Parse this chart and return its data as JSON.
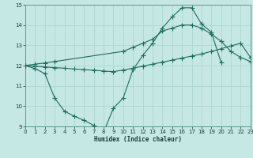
{
  "xlabel": "Humidex (Indice chaleur)",
  "xlim": [
    0,
    23
  ],
  "ylim": [
    9,
    15
  ],
  "xticks": [
    0,
    1,
    2,
    3,
    4,
    5,
    6,
    7,
    8,
    9,
    10,
    11,
    12,
    13,
    14,
    15,
    16,
    17,
    18,
    19,
    20,
    21,
    22,
    23
  ],
  "yticks": [
    9,
    10,
    11,
    12,
    13,
    14,
    15
  ],
  "bg_color": "#c5e8e5",
  "grid_color": "#b0d8d4",
  "line_color": "#1e6b5e",
  "curve1_x": [
    0,
    1,
    2,
    3,
    4,
    5,
    6,
    7,
    8,
    9,
    10,
    11,
    12,
    13,
    14,
    15,
    16,
    17,
    18,
    19,
    20
  ],
  "curve1_y": [
    12.0,
    11.85,
    11.6,
    10.4,
    9.75,
    9.5,
    9.3,
    9.05,
    8.72,
    9.9,
    10.4,
    11.8,
    12.5,
    13.1,
    13.85,
    14.4,
    14.85,
    14.85,
    14.05,
    13.65,
    12.15
  ],
  "curve2_x": [
    0,
    1,
    2,
    3,
    4,
    5,
    6,
    7,
    8,
    9,
    10,
    11,
    12,
    13,
    14,
    15,
    16,
    17,
    18,
    19,
    20,
    21,
    22,
    23
  ],
  "curve2_y": [
    12.0,
    11.97,
    11.93,
    11.9,
    11.87,
    11.83,
    11.8,
    11.77,
    11.73,
    11.7,
    11.78,
    11.87,
    11.97,
    12.07,
    12.17,
    12.27,
    12.37,
    12.47,
    12.57,
    12.7,
    12.83,
    12.97,
    13.1,
    12.4
  ],
  "curve3_x": [
    0,
    1,
    2,
    3,
    10,
    11,
    12,
    13,
    14,
    15,
    16,
    17,
    18,
    19,
    20,
    21,
    22,
    23
  ],
  "curve3_y": [
    12.0,
    12.07,
    12.13,
    12.2,
    12.7,
    12.9,
    13.1,
    13.3,
    13.7,
    13.85,
    14.0,
    14.0,
    13.85,
    13.55,
    13.2,
    12.7,
    12.4,
    12.2
  ]
}
